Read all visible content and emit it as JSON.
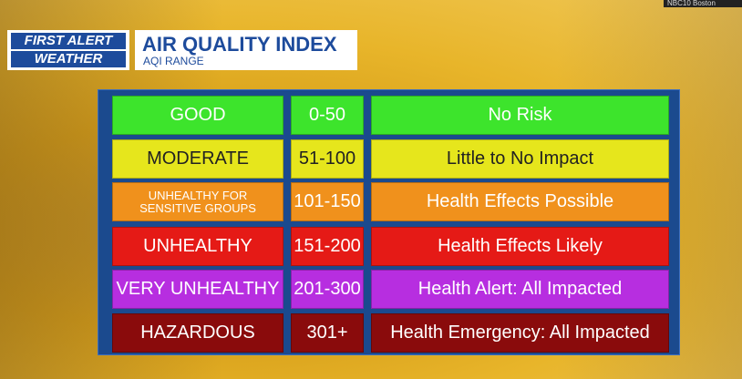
{
  "header": {
    "logo_top": "FIRST ALERT",
    "logo_bottom": "WEATHER",
    "title": "AIR QUALITY INDEX",
    "subtitle": "AQI RANGE"
  },
  "station": "NBC10 Boston",
  "table": {
    "rows": [
      [
        "GOOD",
        "0-50",
        "No Risk"
      ],
      [
        "MODERATE",
        "51-100",
        "Little to No Impact"
      ],
      [
        "UNHEALTHY FOR SENSITIVE GROUPS",
        "101-150",
        "Health Effects Possible"
      ],
      [
        "UNHEALTHY",
        "151-200",
        "Health Effects Likely"
      ],
      [
        "VERY UNHEALTHY",
        "201-300",
        "Health Alert:  All Impacted"
      ],
      [
        "HAZARDOUS",
        "301+",
        "Health Emergency:  All Impacted"
      ]
    ]
  }
}
